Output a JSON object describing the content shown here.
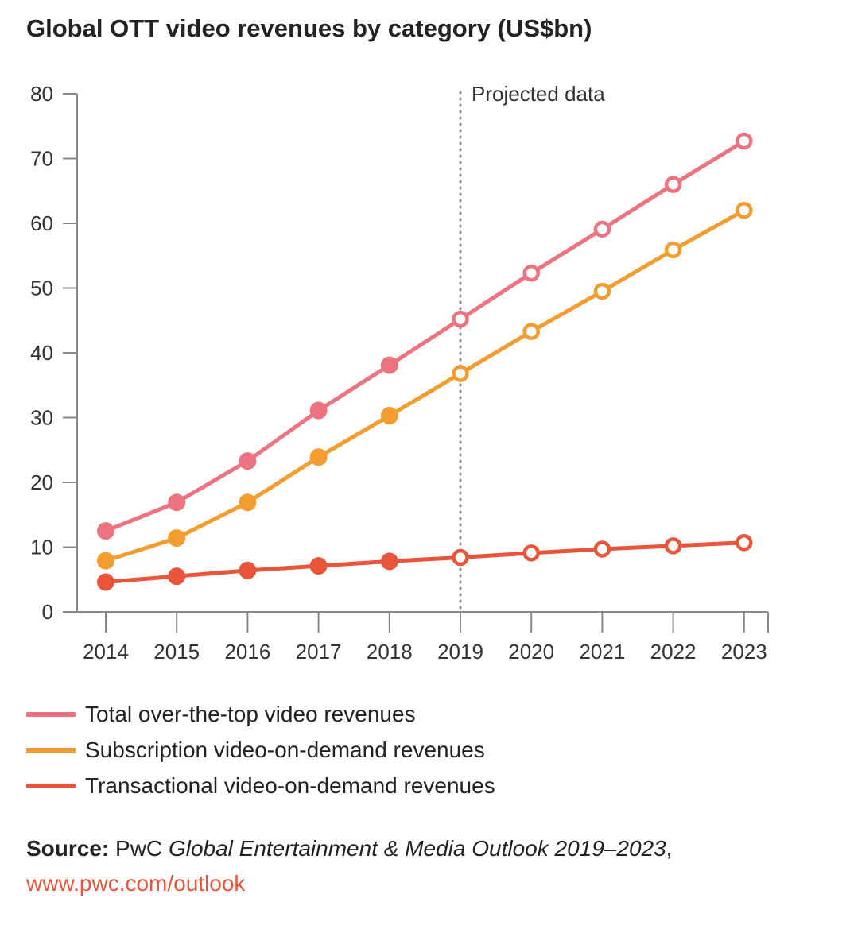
{
  "title": "Global OTT video revenues by category (US$bn)",
  "chart_data": {
    "type": "line",
    "categories": [
      "2014",
      "2015",
      "2016",
      "2017",
      "2018",
      "2019",
      "2020",
      "2021",
      "2022",
      "2023"
    ],
    "projected_from_index": 5,
    "annotation": "Projected data",
    "yticks": [
      "0",
      "10",
      "20",
      "30",
      "40",
      "50",
      "60",
      "70",
      "80"
    ],
    "ylim": [
      0,
      80
    ],
    "series": [
      {
        "name": "Total over-the-top video revenues",
        "color": "#ec7480",
        "values": [
          12.5,
          16.9,
          23.3,
          31.1,
          38.1,
          45.2,
          52.3,
          59.1,
          66.0,
          72.7
        ]
      },
      {
        "name": "Subscription video-on-demand revenues",
        "color": "#f39d31",
        "values": [
          7.9,
          11.4,
          16.9,
          23.9,
          30.3,
          36.8,
          43.3,
          49.5,
          55.9,
          62.0
        ]
      },
      {
        "name": "Transactional video-on-demand revenues",
        "color": "#e8553a",
        "values": [
          4.6,
          5.5,
          6.4,
          7.1,
          7.8,
          8.4,
          9.1,
          9.7,
          10.2,
          10.7
        ]
      }
    ]
  },
  "source": {
    "label": "Source:",
    "publisher": "PwC",
    "publication": "Global Entertainment & Media Outlook 2019–2023",
    "comma": ",",
    "url": "www.pwc.com/outlook"
  }
}
